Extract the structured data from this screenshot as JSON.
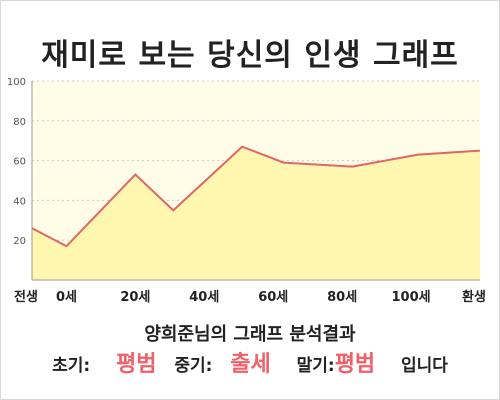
{
  "title": "재미로 보는 당신의 인생 그래프",
  "chart_data": {
    "type": "area",
    "x": [
      -10,
      0,
      20,
      31,
      51,
      63,
      83,
      102,
      120
    ],
    "values": [
      26,
      17,
      53,
      35,
      67,
      59,
      57,
      63,
      65
    ],
    "ylim": [
      0,
      100
    ],
    "xlim": [
      -10,
      120
    ],
    "yticks": [
      20,
      40,
      60,
      80,
      100
    ],
    "xtick_positions": [
      -10,
      0,
      20,
      40,
      60,
      80,
      100,
      120
    ],
    "xtick_labels": [
      "전생",
      "0세",
      "20세",
      "40세",
      "60세",
      "80세",
      "100세",
      "환생"
    ],
    "grid": true,
    "line_color": "#e06666",
    "fill_color": "#fff7b0",
    "plot_bg": "#fffde8"
  },
  "result": {
    "title": "양희준님의 그래프 분석결과",
    "early_label": "초기:",
    "early_value": "평범",
    "middle_label": "중기:",
    "middle_value": "출세",
    "late_label": "말기:",
    "late_value": "평범",
    "ending": "입니다"
  }
}
